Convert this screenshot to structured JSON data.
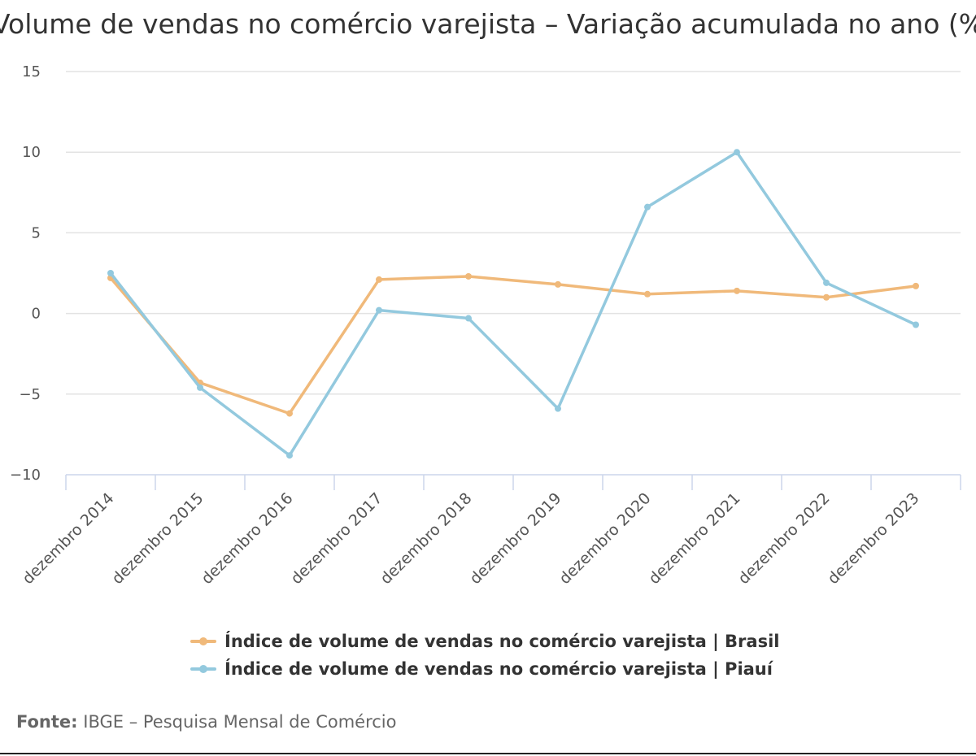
{
  "chart_data": {
    "type": "line",
    "title": "Volume de vendas no comércio varejista – Variação acumulada no ano (%)",
    "categories": [
      "dezembro 2014",
      "dezembro 2015",
      "dezembro 2016",
      "dezembro 2017",
      "dezembro 2018",
      "dezembro 2019",
      "dezembro 2020",
      "dezembro 2021",
      "dezembro 2022",
      "dezembro 2023"
    ],
    "series": [
      {
        "name": "Índice de volume de vendas no comércio varejista | Brasil",
        "color": "#f0b97a",
        "values": [
          2.2,
          -4.3,
          -6.2,
          2.1,
          2.3,
          1.8,
          1.2,
          1.4,
          1.0,
          1.7
        ]
      },
      {
        "name": "Índice de volume de vendas no comércio varejista | Piauí",
        "color": "#93c9de",
        "values": [
          2.5,
          -4.6,
          -8.8,
          0.2,
          -0.3,
          -5.9,
          6.6,
          10.0,
          1.9,
          -0.7
        ]
      }
    ],
    "ylim": [
      -10,
      15
    ],
    "yticks": [
      "15",
      "10",
      "5",
      "0",
      "−5",
      "−10"
    ],
    "grid": true,
    "legend": "bottom"
  },
  "source": {
    "label": "Fonte:",
    "text": "IBGE – Pesquisa Mensal de Comércio"
  }
}
